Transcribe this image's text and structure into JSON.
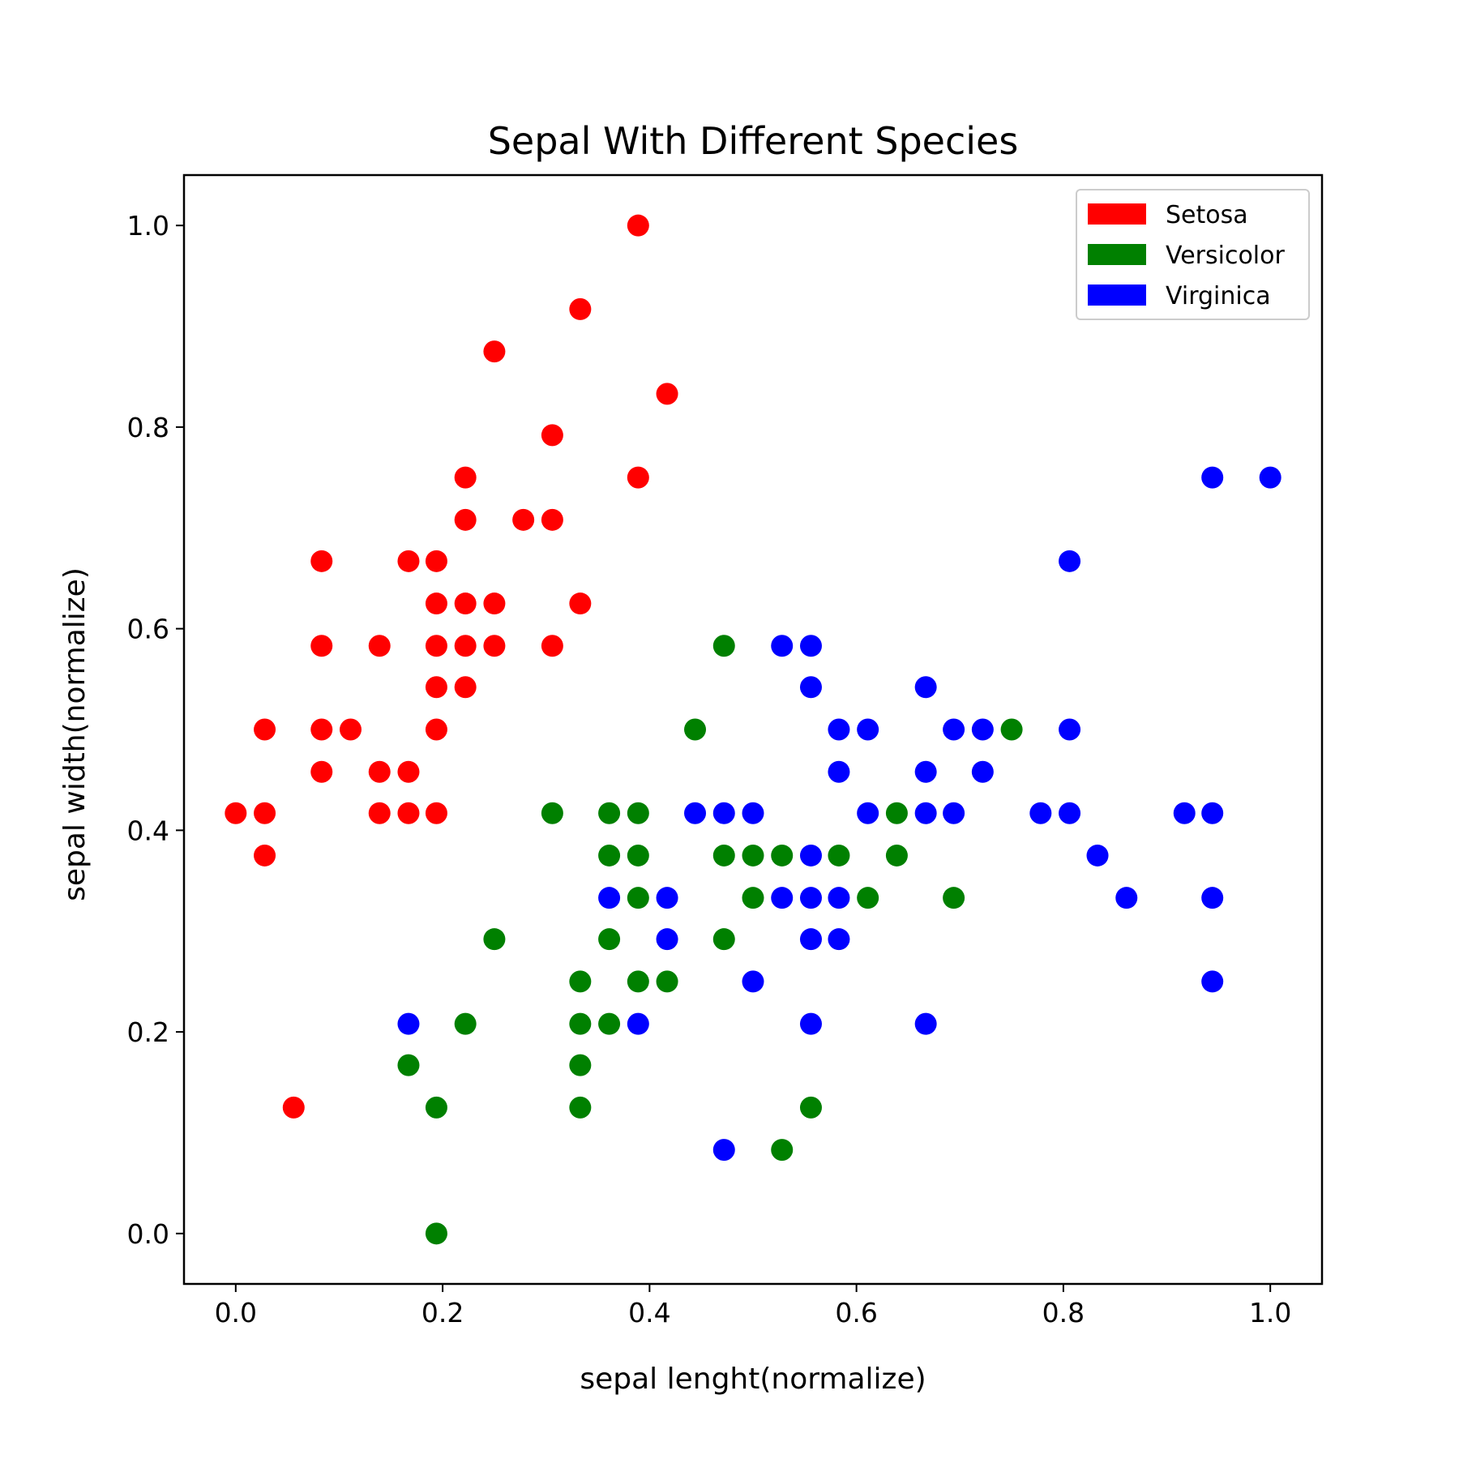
{
  "chart_data": {
    "type": "scatter",
    "title": "Sepal With Different Species",
    "xlabel": "sepal lenght(normalize)",
    "ylabel": "sepal width(normalize)",
    "xlim": [
      -0.05,
      1.05
    ],
    "ylim": [
      -0.05,
      1.05
    ],
    "xticks": [
      "0.0",
      "0.2",
      "0.4",
      "0.6",
      "0.8",
      "1.0"
    ],
    "yticks": [
      "0.0",
      "0.2",
      "0.4",
      "0.6",
      "0.8",
      "1.0"
    ],
    "grid": false,
    "legend_position": "top-right",
    "series": [
      {
        "name": "Setosa",
        "color": "#ff0000",
        "points": [
          [
            0.389,
            1.0
          ],
          [
            0.333,
            0.917
          ],
          [
            0.25,
            0.875
          ],
          [
            0.417,
            0.833
          ],
          [
            0.306,
            0.792
          ],
          [
            0.222,
            0.75
          ],
          [
            0.389,
            0.75
          ],
          [
            0.222,
            0.708
          ],
          [
            0.278,
            0.708
          ],
          [
            0.306,
            0.708
          ],
          [
            0.083,
            0.667
          ],
          [
            0.167,
            0.667
          ],
          [
            0.194,
            0.667
          ],
          [
            0.194,
            0.625
          ],
          [
            0.222,
            0.625
          ],
          [
            0.25,
            0.625
          ],
          [
            0.333,
            0.625
          ],
          [
            0.083,
            0.583
          ],
          [
            0.139,
            0.583
          ],
          [
            0.194,
            0.583
          ],
          [
            0.222,
            0.583
          ],
          [
            0.25,
            0.583
          ],
          [
            0.306,
            0.583
          ],
          [
            0.194,
            0.542
          ],
          [
            0.222,
            0.542
          ],
          [
            0.028,
            0.5
          ],
          [
            0.083,
            0.5
          ],
          [
            0.111,
            0.5
          ],
          [
            0.194,
            0.5
          ],
          [
            0.083,
            0.458
          ],
          [
            0.139,
            0.458
          ],
          [
            0.167,
            0.458
          ],
          [
            0.0,
            0.417
          ],
          [
            0.028,
            0.417
          ],
          [
            0.139,
            0.417
          ],
          [
            0.167,
            0.417
          ],
          [
            0.194,
            0.417
          ],
          [
            0.028,
            0.375
          ],
          [
            0.056,
            0.125
          ]
        ]
      },
      {
        "name": "Versicolor",
        "color": "#008000",
        "points": [
          [
            0.472,
            0.583
          ],
          [
            0.444,
            0.5
          ],
          [
            0.75,
            0.5
          ],
          [
            0.306,
            0.417
          ],
          [
            0.361,
            0.417
          ],
          [
            0.389,
            0.417
          ],
          [
            0.639,
            0.417
          ],
          [
            0.361,
            0.375
          ],
          [
            0.389,
            0.375
          ],
          [
            0.472,
            0.375
          ],
          [
            0.5,
            0.375
          ],
          [
            0.528,
            0.375
          ],
          [
            0.583,
            0.375
          ],
          [
            0.639,
            0.375
          ],
          [
            0.389,
            0.333
          ],
          [
            0.5,
            0.333
          ],
          [
            0.611,
            0.333
          ],
          [
            0.694,
            0.333
          ],
          [
            0.25,
            0.292
          ],
          [
            0.361,
            0.292
          ],
          [
            0.472,
            0.292
          ],
          [
            0.333,
            0.25
          ],
          [
            0.389,
            0.25
          ],
          [
            0.417,
            0.25
          ],
          [
            0.222,
            0.208
          ],
          [
            0.333,
            0.208
          ],
          [
            0.361,
            0.208
          ],
          [
            0.167,
            0.167
          ],
          [
            0.333,
            0.167
          ],
          [
            0.194,
            0.125
          ],
          [
            0.333,
            0.125
          ],
          [
            0.556,
            0.125
          ],
          [
            0.528,
            0.083
          ],
          [
            0.194,
            0.0
          ]
        ]
      },
      {
        "name": "Virginica",
        "color": "#0000ff",
        "points": [
          [
            0.944,
            0.75
          ],
          [
            1.0,
            0.75
          ],
          [
            0.806,
            0.667
          ],
          [
            0.528,
            0.583
          ],
          [
            0.556,
            0.583
          ],
          [
            0.556,
            0.542
          ],
          [
            0.667,
            0.542
          ],
          [
            0.583,
            0.5
          ],
          [
            0.611,
            0.5
          ],
          [
            0.694,
            0.5
          ],
          [
            0.722,
            0.5
          ],
          [
            0.806,
            0.5
          ],
          [
            0.583,
            0.458
          ],
          [
            0.667,
            0.458
          ],
          [
            0.722,
            0.458
          ],
          [
            0.444,
            0.417
          ],
          [
            0.472,
            0.417
          ],
          [
            0.5,
            0.417
          ],
          [
            0.611,
            0.417
          ],
          [
            0.667,
            0.417
          ],
          [
            0.694,
            0.417
          ],
          [
            0.778,
            0.417
          ],
          [
            0.806,
            0.417
          ],
          [
            0.917,
            0.417
          ],
          [
            0.944,
            0.417
          ],
          [
            0.556,
            0.375
          ],
          [
            0.833,
            0.375
          ],
          [
            0.361,
            0.333
          ],
          [
            0.417,
            0.333
          ],
          [
            0.528,
            0.333
          ],
          [
            0.556,
            0.333
          ],
          [
            0.583,
            0.333
          ],
          [
            0.861,
            0.333
          ],
          [
            0.944,
            0.333
          ],
          [
            0.417,
            0.292
          ],
          [
            0.556,
            0.292
          ],
          [
            0.583,
            0.292
          ],
          [
            0.5,
            0.25
          ],
          [
            0.944,
            0.25
          ],
          [
            0.167,
            0.208
          ],
          [
            0.389,
            0.208
          ],
          [
            0.556,
            0.208
          ],
          [
            0.667,
            0.208
          ],
          [
            0.472,
            0.083
          ]
        ]
      }
    ]
  }
}
